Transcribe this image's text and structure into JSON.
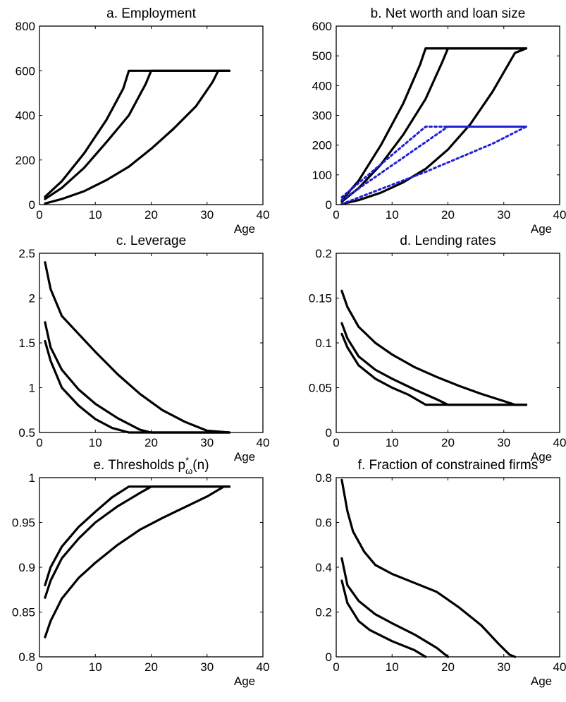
{
  "chart_data": [
    {
      "id": "a",
      "type": "line",
      "title": "a. Employment",
      "xlabel": "Age",
      "xlim": [
        0,
        40
      ],
      "ylim": [
        0,
        800
      ],
      "xticks": [
        "0",
        "10",
        "20",
        "30",
        "40"
      ],
      "yticks": [
        "0",
        "200",
        "400",
        "600",
        "800"
      ],
      "series": [
        {
          "color": "#000000",
          "style": "solid",
          "x": [
            1,
            4,
            8,
            12,
            15,
            16,
            34
          ],
          "y": [
            35,
            105,
            230,
            380,
            520,
            600,
            600
          ]
        },
        {
          "color": "#000000",
          "style": "solid",
          "x": [
            1,
            4,
            8,
            12,
            16,
            19,
            20,
            34
          ],
          "y": [
            25,
            75,
            165,
            280,
            400,
            540,
            600,
            600
          ]
        },
        {
          "color": "#000000",
          "style": "solid",
          "x": [
            1,
            4,
            8,
            12,
            16,
            20,
            24,
            28,
            31,
            32,
            34
          ],
          "y": [
            5,
            25,
            60,
            110,
            170,
            250,
            340,
            440,
            550,
            600,
            600
          ]
        }
      ]
    },
    {
      "id": "b",
      "type": "line",
      "title": "b. Net worth and loan size",
      "xlabel": "Age",
      "xlim": [
        0,
        40
      ],
      "ylim": [
        0,
        600
      ],
      "xticks": [
        "0",
        "10",
        "20",
        "30",
        "40"
      ],
      "yticks": [
        "0",
        "100",
        "200",
        "300",
        "400",
        "500",
        "600"
      ],
      "series": [
        {
          "color": "#000000",
          "style": "solid",
          "x": [
            1,
            4,
            8,
            12,
            15,
            16,
            34
          ],
          "y": [
            15,
            80,
            200,
            340,
            470,
            525,
            525
          ]
        },
        {
          "color": "#000000",
          "style": "solid",
          "x": [
            1,
            4,
            8,
            12,
            16,
            19,
            20,
            34
          ],
          "y": [
            10,
            55,
            135,
            235,
            355,
            480,
            525,
            525
          ]
        },
        {
          "color": "#000000",
          "style": "solid",
          "x": [
            1,
            4,
            8,
            12,
            16,
            20,
            24,
            28,
            32,
            34
          ],
          "y": [
            2,
            15,
            40,
            75,
            120,
            185,
            270,
            380,
            510,
            525
          ]
        },
        {
          "color": "#1f1fd6",
          "style": "dotted",
          "x": [
            1,
            16,
            34
          ],
          "y": [
            25,
            262,
            262
          ]
        },
        {
          "color": "#1f1fd6",
          "style": "dotted",
          "x": [
            1,
            20,
            34
          ],
          "y": [
            15,
            262,
            262
          ]
        },
        {
          "color": "#1f1fd6",
          "style": "dotted",
          "x": [
            1,
            16,
            28,
            34
          ],
          "y": [
            2,
            110,
            205,
            262
          ]
        }
      ]
    },
    {
      "id": "c",
      "type": "line",
      "title": "c. Leverage",
      "xlabel": "Age",
      "xlim": [
        0,
        40
      ],
      "ylim": [
        0.5,
        2.5
      ],
      "xticks": [
        "0",
        "10",
        "20",
        "30",
        "40"
      ],
      "yticks": [
        "0.5",
        "1",
        "1.5",
        "2",
        "2.5"
      ],
      "series": [
        {
          "color": "#000000",
          "style": "solid",
          "x": [
            1,
            2,
            4,
            7,
            10,
            14,
            18,
            22,
            26,
            30,
            34
          ],
          "y": [
            2.4,
            2.1,
            1.8,
            1.6,
            1.4,
            1.15,
            0.93,
            0.75,
            0.62,
            0.52,
            0.5
          ]
        },
        {
          "color": "#000000",
          "style": "solid",
          "x": [
            1,
            2,
            4,
            7,
            10,
            14,
            18,
            20,
            34
          ],
          "y": [
            1.73,
            1.45,
            1.2,
            0.98,
            0.82,
            0.66,
            0.53,
            0.5,
            0.5
          ]
        },
        {
          "color": "#000000",
          "style": "solid",
          "x": [
            1,
            2,
            4,
            7,
            10,
            13,
            16,
            34
          ],
          "y": [
            1.52,
            1.3,
            1.0,
            0.8,
            0.65,
            0.55,
            0.5,
            0.5
          ]
        }
      ]
    },
    {
      "id": "d",
      "type": "line",
      "title": "d. Lending rates",
      "xlabel": "Age",
      "xlim": [
        0,
        40
      ],
      "ylim": [
        0,
        0.2
      ],
      "xticks": [
        "0",
        "10",
        "20",
        "30",
        "40"
      ],
      "yticks": [
        "0",
        "0.05",
        "0.1",
        "0.15",
        "0.2"
      ],
      "series": [
        {
          "color": "#000000",
          "style": "solid",
          "x": [
            1,
            2,
            4,
            7,
            10,
            14,
            18,
            22,
            26,
            30,
            32,
            34
          ],
          "y": [
            0.158,
            0.14,
            0.118,
            0.1,
            0.087,
            0.073,
            0.062,
            0.052,
            0.043,
            0.035,
            0.031,
            0.031
          ]
        },
        {
          "color": "#000000",
          "style": "solid",
          "x": [
            1,
            2,
            4,
            7,
            10,
            14,
            18,
            20,
            34
          ],
          "y": [
            0.122,
            0.105,
            0.085,
            0.07,
            0.06,
            0.048,
            0.037,
            0.031,
            0.031
          ]
        },
        {
          "color": "#000000",
          "style": "solid",
          "x": [
            1,
            2,
            4,
            7,
            10,
            13,
            16,
            34
          ],
          "y": [
            0.11,
            0.095,
            0.075,
            0.06,
            0.05,
            0.042,
            0.031,
            0.031
          ]
        }
      ]
    },
    {
      "id": "e",
      "type": "line",
      "title": "e. Thresholds p*ω(n)",
      "title_parts": {
        "base": "e. Thresholds p",
        "sup": "*",
        "sub": "ω",
        "tail": "(n)"
      },
      "xlabel": "Age",
      "xlim": [
        0,
        40
      ],
      "ylim": [
        0.8,
        1.0
      ],
      "xticks": [
        "0",
        "10",
        "20",
        "30",
        "40"
      ],
      "yticks": [
        "0.8",
        "0.85",
        "0.9",
        "0.95",
        "1"
      ],
      "series": [
        {
          "color": "#000000",
          "style": "solid",
          "x": [
            1,
            2,
            4,
            7,
            10,
            13,
            16,
            34
          ],
          "y": [
            0.88,
            0.9,
            0.923,
            0.945,
            0.962,
            0.978,
            0.99,
            0.99
          ]
        },
        {
          "color": "#000000",
          "style": "solid",
          "x": [
            1,
            2,
            4,
            7,
            10,
            14,
            18,
            20,
            34
          ],
          "y": [
            0.866,
            0.885,
            0.91,
            0.932,
            0.95,
            0.968,
            0.983,
            0.99,
            0.99
          ]
        },
        {
          "color": "#000000",
          "style": "solid",
          "x": [
            1,
            2,
            4,
            7,
            10,
            14,
            18,
            22,
            26,
            30,
            33,
            34
          ],
          "y": [
            0.822,
            0.84,
            0.865,
            0.888,
            0.905,
            0.925,
            0.942,
            0.955,
            0.967,
            0.979,
            0.99,
            0.99
          ]
        }
      ]
    },
    {
      "id": "f",
      "type": "line",
      "title": "f. Fraction of constrained firms",
      "xlabel": "Age",
      "xlim": [
        0,
        40
      ],
      "ylim": [
        0,
        0.8
      ],
      "xticks": [
        "0",
        "10",
        "20",
        "30",
        "40"
      ],
      "yticks": [
        "0",
        "0.2",
        "0.4",
        "0.6",
        "0.8"
      ],
      "series": [
        {
          "color": "#000000",
          "style": "solid",
          "x": [
            1,
            2,
            3,
            5,
            7,
            10,
            14,
            18,
            22,
            26,
            29,
            31,
            32
          ],
          "y": [
            0.79,
            0.65,
            0.56,
            0.47,
            0.41,
            0.37,
            0.33,
            0.29,
            0.22,
            0.14,
            0.06,
            0.01,
            0.0
          ]
        },
        {
          "color": "#000000",
          "style": "solid",
          "x": [
            1,
            2,
            4,
            7,
            10,
            14,
            18,
            20
          ],
          "y": [
            0.44,
            0.32,
            0.25,
            0.19,
            0.15,
            0.1,
            0.04,
            0.0
          ]
        },
        {
          "color": "#000000",
          "style": "solid",
          "x": [
            1,
            2,
            4,
            6,
            10,
            14,
            16
          ],
          "y": [
            0.34,
            0.24,
            0.16,
            0.12,
            0.07,
            0.03,
            0.0
          ]
        }
      ]
    }
  ]
}
